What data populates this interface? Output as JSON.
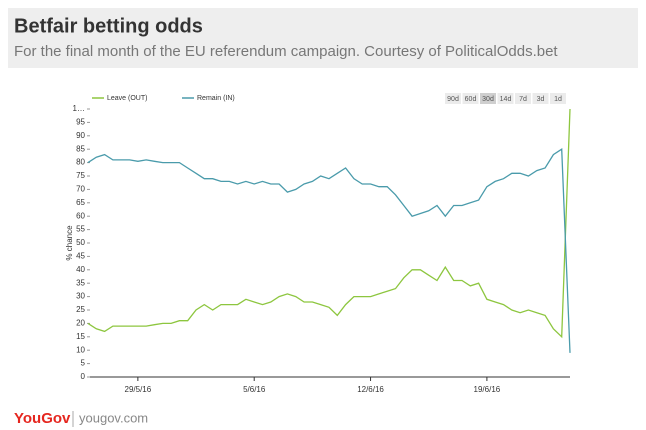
{
  "chart_data": {
    "type": "line",
    "title": "Betfair betting odds",
    "subtitle": "For the final month of the EU referendum campaign. Courtesy of PoliticalOdds.bet",
    "y_label": "% chance",
    "categories": [
      null,
      null,
      null,
      null,
      null,
      null,
      "29/5/16",
      null,
      null,
      null,
      null,
      null,
      null,
      null,
      null,
      null,
      null,
      null,
      null,
      null,
      "5/6/16",
      null,
      null,
      null,
      null,
      null,
      null,
      null,
      null,
      null,
      null,
      null,
      null,
      null,
      "12/6/16",
      null,
      null,
      null,
      null,
      null,
      null,
      null,
      null,
      null,
      null,
      null,
      null,
      null,
      "19/6/16",
      null,
      null,
      null,
      null,
      null,
      null,
      null,
      null,
      null,
      null
    ],
    "series": [
      {
        "name": "Leave (OUT)",
        "color": "#8dc63f",
        "values": [
          20,
          18,
          17,
          19,
          19,
          19,
          19,
          19,
          19.5,
          20,
          20,
          21,
          21,
          25,
          27,
          25,
          27,
          27,
          27,
          29,
          28,
          27,
          28,
          30,
          31,
          30,
          28,
          28,
          27,
          26,
          23,
          27,
          30,
          30,
          30,
          31,
          32,
          33,
          37,
          40,
          40,
          38,
          36,
          41,
          36,
          36,
          34,
          35,
          29,
          28,
          27,
          25,
          24,
          25,
          24,
          23,
          18,
          15,
          100
        ]
      },
      {
        "name": "Remain (IN)",
        "color": "#4a9bab",
        "values": [
          80,
          82,
          83,
          81,
          81,
          81,
          80.5,
          81,
          80.5,
          80,
          80,
          80,
          78,
          76,
          74,
          74,
          73,
          73,
          72,
          73,
          72,
          73,
          72,
          72,
          69,
          70,
          72,
          73,
          75,
          74,
          76,
          78,
          74,
          72,
          72,
          71,
          71,
          68,
          64,
          60,
          61,
          62,
          64,
          60,
          64,
          64,
          65,
          66,
          71,
          73,
          74,
          76,
          76,
          75,
          77,
          78,
          83,
          85,
          9
        ]
      }
    ],
    "ylim": [
      0,
      100
    ],
    "yticks": [
      0,
      5,
      10,
      15,
      20,
      25,
      30,
      35,
      40,
      45,
      50,
      55,
      60,
      65,
      70,
      75,
      80,
      85,
      90,
      95,
      {
        "value": 100,
        "label": "1…"
      }
    ],
    "legend": "top-left"
  },
  "range_selector": [
    {
      "label": "90d",
      "selected": false
    },
    {
      "label": "60d",
      "selected": false
    },
    {
      "label": "30d",
      "selected": true
    },
    {
      "label": "14d",
      "selected": false
    },
    {
      "label": "7d",
      "selected": false
    },
    {
      "label": "3d",
      "selected": false
    },
    {
      "label": "1d",
      "selected": false
    }
  ],
  "footer": {
    "brand": "YouGov",
    "site": "yougov.com"
  }
}
